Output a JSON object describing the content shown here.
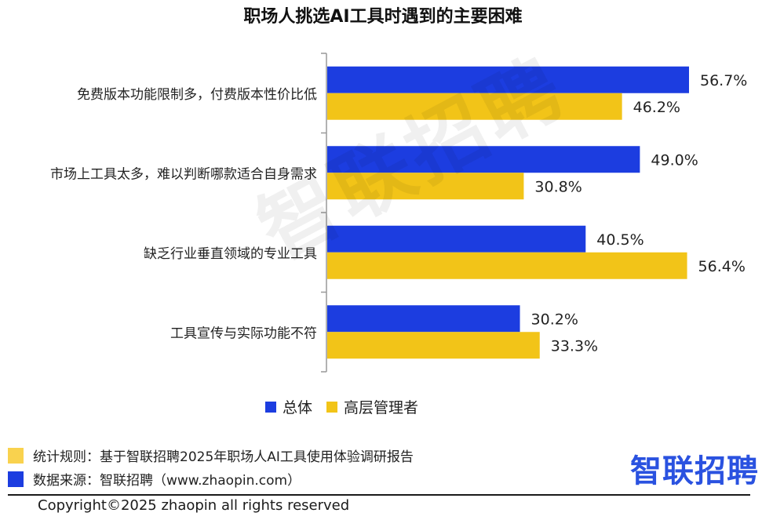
{
  "chart_data": {
    "type": "bar",
    "orientation": "horizontal",
    "title": "职场人挑选AI工具时遇到的主要困难",
    "categories": [
      "免费版本功能限制多，付费版本性价比低",
      "市场上工具太多，难以判断哪款适合自身需求",
      "缺乏行业垂直领域的专业工具",
      "工具宣传与实际功能不符"
    ],
    "series": [
      {
        "name": "总体",
        "color": "#1c3de0",
        "values": [
          56.7,
          49.0,
          40.5,
          30.2
        ],
        "labels": [
          "56.7%",
          "49.0%",
          "40.5%",
          "30.2%"
        ]
      },
      {
        "name": "高层管理者",
        "color": "#f2c418",
        "values": [
          46.2,
          30.8,
          56.4,
          33.3
        ],
        "labels": [
          "46.2%",
          "30.8%",
          "56.4%",
          "33.3%"
        ]
      }
    ],
    "xlim": [
      0,
      60
    ],
    "grid": false,
    "legend_position": "bottom"
  },
  "watermark": "智联招聘",
  "footnotes": [
    {
      "text": "统计规则：基于智联招聘2025年职场人AI工具使用体验调研报告",
      "color": "#f9d24e"
    },
    {
      "text": "数据来源：智联招聘（www.zhaopin.com）",
      "color": "#1c3de0"
    }
  ],
  "brand": {
    "text": "智联招聘",
    "color": "#2a52e0"
  },
  "copyright": "Copyright©2025 zhaopin all rights reserved"
}
